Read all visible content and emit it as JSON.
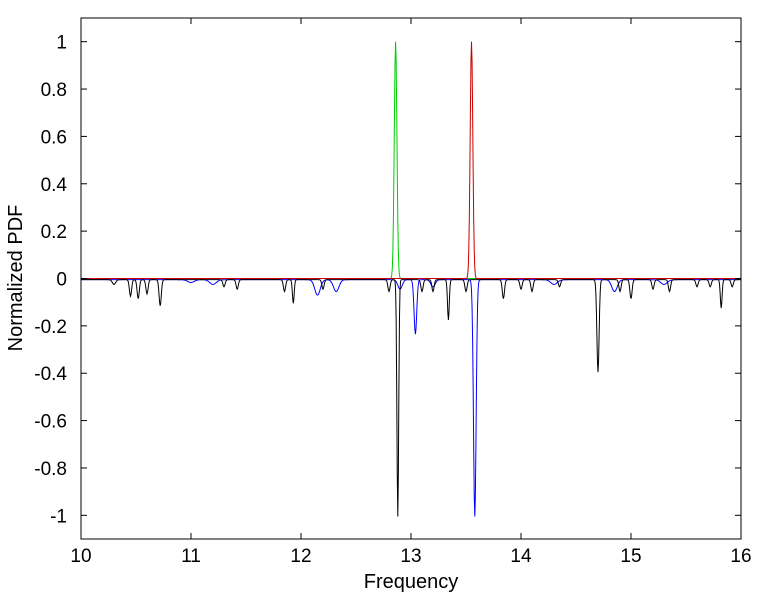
{
  "chart_data": {
    "type": "line",
    "title": "",
    "xlabel": "Frequency",
    "ylabel": "Normalized PDF",
    "xlim": [
      10,
      16
    ],
    "ylim": [
      -1.1,
      1.1
    ],
    "xticks": [
      10,
      11,
      12,
      13,
      14,
      15,
      16
    ],
    "yticks": [
      1,
      0.8,
      0.6,
      0.4,
      0.2,
      0,
      -0.2,
      -0.4,
      -0.6,
      -0.8,
      -1
    ],
    "grid": false,
    "legend": "none",
    "series": [
      {
        "color": "#00cc00",
        "baseline": 0,
        "peaks": [
          {
            "x": 12.86,
            "y": 1.0,
            "w": 0.012
          }
        ]
      },
      {
        "color": "#cc0000",
        "baseline": 0,
        "peaks": [
          {
            "x": 13.55,
            "y": 1.0,
            "w": 0.012
          }
        ]
      },
      {
        "color": "#0000ff",
        "baseline": -0.005,
        "peaks": [
          {
            "x": 11.0,
            "y": -0.012,
            "w": 0.03
          },
          {
            "x": 11.2,
            "y": -0.02,
            "w": 0.03
          },
          {
            "x": 12.15,
            "y": -0.065,
            "w": 0.025
          },
          {
            "x": 12.32,
            "y": -0.05,
            "w": 0.025
          },
          {
            "x": 12.9,
            "y": -0.04,
            "w": 0.02
          },
          {
            "x": 13.04,
            "y": -0.23,
            "w": 0.012
          },
          {
            "x": 13.2,
            "y": -0.03,
            "w": 0.02
          },
          {
            "x": 13.58,
            "y": -1.0,
            "w": 0.012
          },
          {
            "x": 14.3,
            "y": -0.02,
            "w": 0.03
          },
          {
            "x": 14.85,
            "y": -0.05,
            "w": 0.025
          },
          {
            "x": 15.3,
            "y": -0.02,
            "w": 0.03
          }
        ]
      },
      {
        "color": "#000000",
        "baseline": -0.005,
        "peaks": [
          {
            "x": 10.3,
            "y": -0.02,
            "w": 0.015
          },
          {
            "x": 10.45,
            "y": -0.07,
            "w": 0.01
          },
          {
            "x": 10.52,
            "y": -0.08,
            "w": 0.01
          },
          {
            "x": 10.6,
            "y": -0.06,
            "w": 0.01
          },
          {
            "x": 10.72,
            "y": -0.11,
            "w": 0.01
          },
          {
            "x": 11.3,
            "y": -0.03,
            "w": 0.01
          },
          {
            "x": 11.42,
            "y": -0.04,
            "w": 0.01
          },
          {
            "x": 11.85,
            "y": -0.05,
            "w": 0.01
          },
          {
            "x": 11.93,
            "y": -0.1,
            "w": 0.008
          },
          {
            "x": 12.2,
            "y": -0.04,
            "w": 0.01
          },
          {
            "x": 12.8,
            "y": -0.05,
            "w": 0.01
          },
          {
            "x": 12.88,
            "y": -1.0,
            "w": 0.008
          },
          {
            "x": 13.1,
            "y": -0.05,
            "w": 0.01
          },
          {
            "x": 13.2,
            "y": -0.05,
            "w": 0.01
          },
          {
            "x": 13.34,
            "y": -0.17,
            "w": 0.008
          },
          {
            "x": 13.5,
            "y": -0.05,
            "w": 0.01
          },
          {
            "x": 13.84,
            "y": -0.08,
            "w": 0.01
          },
          {
            "x": 14.0,
            "y": -0.04,
            "w": 0.01
          },
          {
            "x": 14.1,
            "y": -0.05,
            "w": 0.01
          },
          {
            "x": 14.35,
            "y": -0.03,
            "w": 0.01
          },
          {
            "x": 14.7,
            "y": -0.39,
            "w": 0.01
          },
          {
            "x": 14.9,
            "y": -0.05,
            "w": 0.01
          },
          {
            "x": 15.0,
            "y": -0.08,
            "w": 0.01
          },
          {
            "x": 15.2,
            "y": -0.04,
            "w": 0.01
          },
          {
            "x": 15.35,
            "y": -0.05,
            "w": 0.01
          },
          {
            "x": 15.6,
            "y": -0.03,
            "w": 0.01
          },
          {
            "x": 15.72,
            "y": -0.03,
            "w": 0.01
          },
          {
            "x": 15.82,
            "y": -0.12,
            "w": 0.008
          },
          {
            "x": 15.92,
            "y": -0.03,
            "w": 0.01
          }
        ]
      }
    ]
  }
}
